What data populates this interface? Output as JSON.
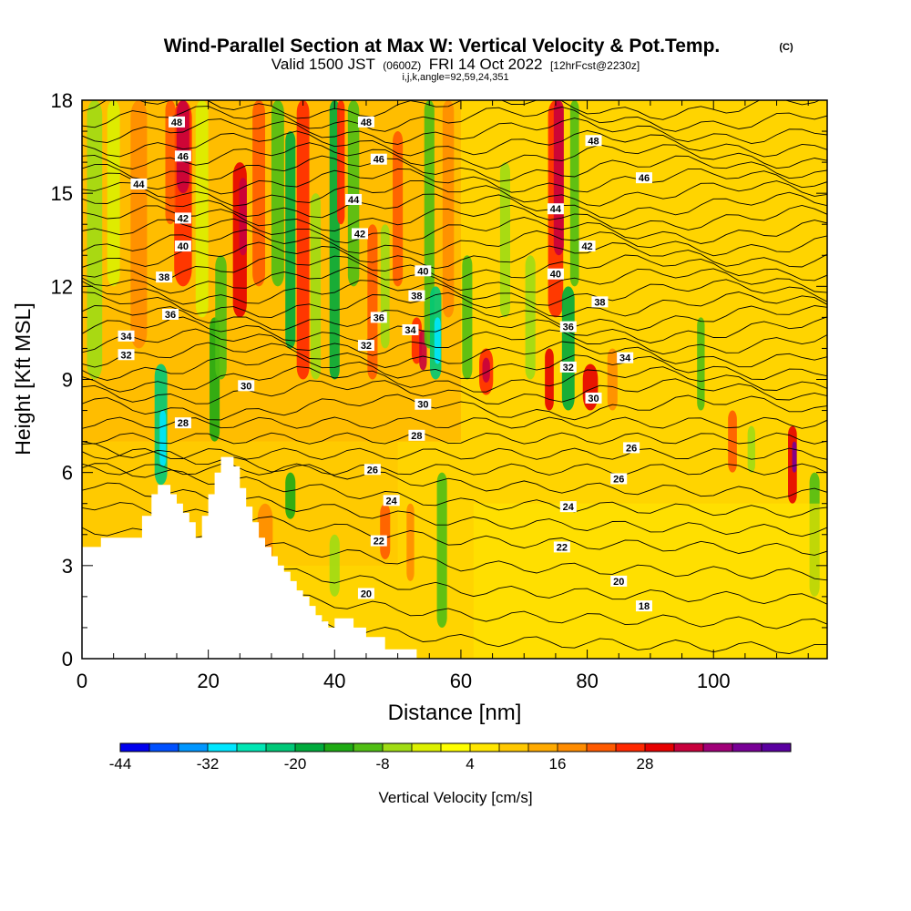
{
  "chart_data": {
    "type": "heatmap",
    "title": "Wind-Parallel Section at Max W: Vertical Velocity & Pot.Temp.",
    "title_mark": "(C)",
    "subtitle": {
      "valid_prefix": "Valid 1500 JST",
      "utc": "(0600Z)",
      "date": "FRI 14 Oct 2022",
      "forecast": "[12hrFcst@2230z]"
    },
    "subtitle2": "i,j,k,angle=92,59,24,351",
    "xlabel": "Distance [nm]",
    "ylabel": "Height [Kft MSL]",
    "xlim": [
      0,
      118
    ],
    "ylim": [
      0,
      18
    ],
    "x_ticks": [
      0,
      20,
      40,
      60,
      80,
      100
    ],
    "y_ticks": [
      0,
      3,
      6,
      9,
      12,
      15,
      18
    ],
    "colorbar": {
      "label": "Vertical Velocity [cm/s]",
      "tick_labels": [
        "-44",
        "-32",
        "-20",
        "-8",
        "4",
        "16",
        "28"
      ],
      "colors": [
        "#0000ee",
        "#0050ff",
        "#0096ff",
        "#00e6ff",
        "#00e6b4",
        "#00c878",
        "#00aa3c",
        "#1eaa14",
        "#50be14",
        "#a0dc14",
        "#dcf000",
        "#ffff00",
        "#ffe600",
        "#ffc800",
        "#ffaa00",
        "#ff8c00",
        "#ff5a00",
        "#ff2800",
        "#e60000",
        "#c8003c",
        "#a00078",
        "#780096",
        "#5a00a0"
      ]
    },
    "theta_contour_labels": [
      {
        "x": 15,
        "y": 17.3,
        "label": "48"
      },
      {
        "x": 45,
        "y": 17.3,
        "label": "48"
      },
      {
        "x": 81,
        "y": 16.7,
        "label": "48"
      },
      {
        "x": 16,
        "y": 16.2,
        "label": "46"
      },
      {
        "x": 47,
        "y": 16.1,
        "label": "46"
      },
      {
        "x": 89,
        "y": 15.5,
        "label": "46"
      },
      {
        "x": 9,
        "y": 15.3,
        "label": "44"
      },
      {
        "x": 43,
        "y": 14.8,
        "label": "44"
      },
      {
        "x": 75,
        "y": 14.5,
        "label": "44"
      },
      {
        "x": 16,
        "y": 14.2,
        "label": "42"
      },
      {
        "x": 44,
        "y": 13.7,
        "label": "42"
      },
      {
        "x": 80,
        "y": 13.3,
        "label": "42"
      },
      {
        "x": 16,
        "y": 13.3,
        "label": "40"
      },
      {
        "x": 54,
        "y": 12.5,
        "label": "40"
      },
      {
        "x": 75,
        "y": 12.4,
        "label": "40"
      },
      {
        "x": 13,
        "y": 12.3,
        "label": "38"
      },
      {
        "x": 53,
        "y": 11.7,
        "label": "38"
      },
      {
        "x": 82,
        "y": 11.5,
        "label": "38"
      },
      {
        "x": 14,
        "y": 11.1,
        "label": "36"
      },
      {
        "x": 47,
        "y": 11.0,
        "label": "36"
      },
      {
        "x": 77,
        "y": 10.7,
        "label": "36"
      },
      {
        "x": 7,
        "y": 10.4,
        "label": "34"
      },
      {
        "x": 52,
        "y": 10.6,
        "label": "34"
      },
      {
        "x": 86,
        "y": 9.7,
        "label": "34"
      },
      {
        "x": 7,
        "y": 9.8,
        "label": "32"
      },
      {
        "x": 45,
        "y": 10.1,
        "label": "32"
      },
      {
        "x": 77,
        "y": 9.4,
        "label": "32"
      },
      {
        "x": 26,
        "y": 8.8,
        "label": "30"
      },
      {
        "x": 54,
        "y": 8.2,
        "label": "30"
      },
      {
        "x": 81,
        "y": 8.4,
        "label": "30"
      },
      {
        "x": 16,
        "y": 7.6,
        "label": "28"
      },
      {
        "x": 53,
        "y": 7.2,
        "label": "28"
      },
      {
        "x": 87,
        "y": 6.8,
        "label": "26"
      },
      {
        "x": 46,
        "y": 6.1,
        "label": "26"
      },
      {
        "x": 85,
        "y": 5.8,
        "label": "26"
      },
      {
        "x": 49,
        "y": 5.1,
        "label": "24"
      },
      {
        "x": 77,
        "y": 4.9,
        "label": "24"
      },
      {
        "x": 47,
        "y": 3.8,
        "label": "22"
      },
      {
        "x": 76,
        "y": 3.6,
        "label": "22"
      },
      {
        "x": 45,
        "y": 2.1,
        "label": "20"
      },
      {
        "x": 85,
        "y": 2.5,
        "label": "20"
      },
      {
        "x": 89,
        "y": 1.7,
        "label": "18"
      }
    ]
  }
}
